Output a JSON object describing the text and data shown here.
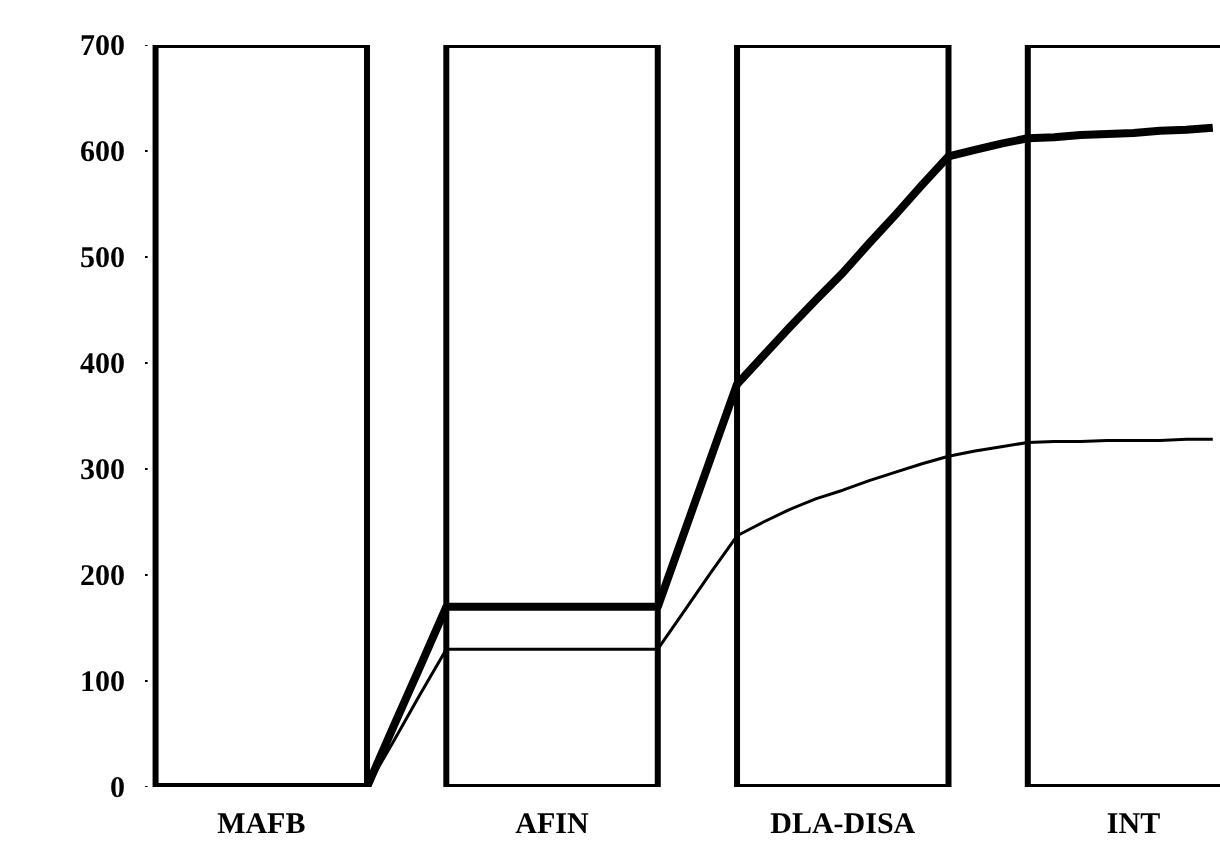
{
  "chart_data": {
    "type": "line",
    "categories": [
      null,
      null,
      null,
      null,
      "MAFB",
      null,
      null,
      null,
      null,
      null,
      null,
      null,
      null,
      null,
      null,
      "AFIN",
      null,
      null,
      null,
      null,
      null,
      null,
      null,
      null,
      null,
      null,
      "DLA-DISA",
      null,
      null,
      null,
      null,
      null,
      null,
      null,
      null,
      null,
      null,
      "INT",
      null,
      null,
      null
    ],
    "ylim": [
      0,
      700
    ],
    "yticks": [
      0,
      100,
      200,
      300,
      400,
      500,
      600,
      700
    ],
    "series": [
      {
        "color": "#000000",
        "values": [
          0,
          0,
          0,
          0,
          0,
          0,
          0,
          0,
          0,
          57,
          113,
          170,
          170,
          170,
          170,
          170,
          170,
          170,
          170,
          170,
          240,
          310,
          380,
          407,
          434,
          460,
          485,
          513,
          540,
          568,
          595,
          601,
          607,
          612,
          613,
          615,
          616,
          617,
          619,
          620,
          622
        ]
      },
      {
        "color": "#000000",
        "values": [
          0,
          0,
          0,
          0,
          0,
          0,
          0,
          0,
          0,
          43,
          87,
          130,
          130,
          130,
          130,
          130,
          130,
          130,
          130,
          130,
          166,
          202,
          237,
          250,
          262,
          272,
          280,
          289,
          297,
          305,
          312,
          317,
          321,
          325,
          326,
          326,
          327,
          327,
          327,
          328,
          328
        ]
      }
    ],
    "grid": false,
    "marker": "none",
    "line_style": "solid"
  }
}
